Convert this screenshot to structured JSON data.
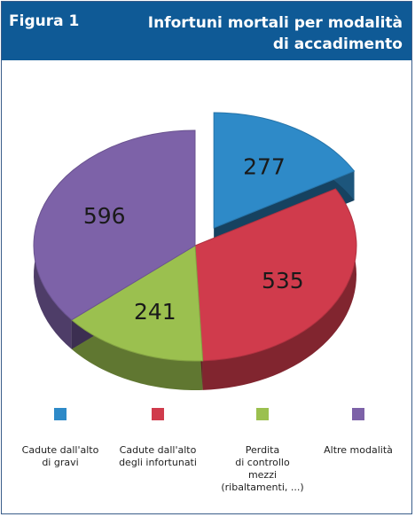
{
  "figure_label": "Figura 1",
  "title_line1": "Infortuni mortali per modalità",
  "title_line2": "di accadimento",
  "header_color": "#0f5a96",
  "chart_data": {
    "type": "pie",
    "title": "Infortuni mortali per modalità di accadimento",
    "slices": [
      {
        "label": "Cadute dall'alto di gravi",
        "value": 277,
        "color": "#2e8ac8",
        "exploded": true
      },
      {
        "label": "Cadute dall'alto degli infortunati",
        "value": 535,
        "color": "#d03b4c"
      },
      {
        "label": "Perdita di controllo mezzi (ribaltamenti, ...)",
        "value": 241,
        "color": "#9bc04f"
      },
      {
        "label": "Altre modalità",
        "value": 596,
        "color": "#7d62a8"
      }
    ],
    "legend_position": "bottom",
    "three_d": true
  },
  "legend": [
    {
      "line1": "Cadute dall'alto",
      "line2": "di gravi",
      "line3": "",
      "line4": "",
      "color": "#2e8ac8"
    },
    {
      "line1": "Cadute dall'alto",
      "line2": "degli infortunati",
      "line3": "",
      "line4": "",
      "color": "#d03b4c"
    },
    {
      "line1": "Perdita",
      "line2": "di controllo",
      "line3": "mezzi",
      "line4": "(ribaltamenti, ...)",
      "color": "#9bc04f"
    },
    {
      "line1": "Altre modalità",
      "line2": "",
      "line3": "",
      "line4": "",
      "color": "#7d62a8"
    }
  ]
}
